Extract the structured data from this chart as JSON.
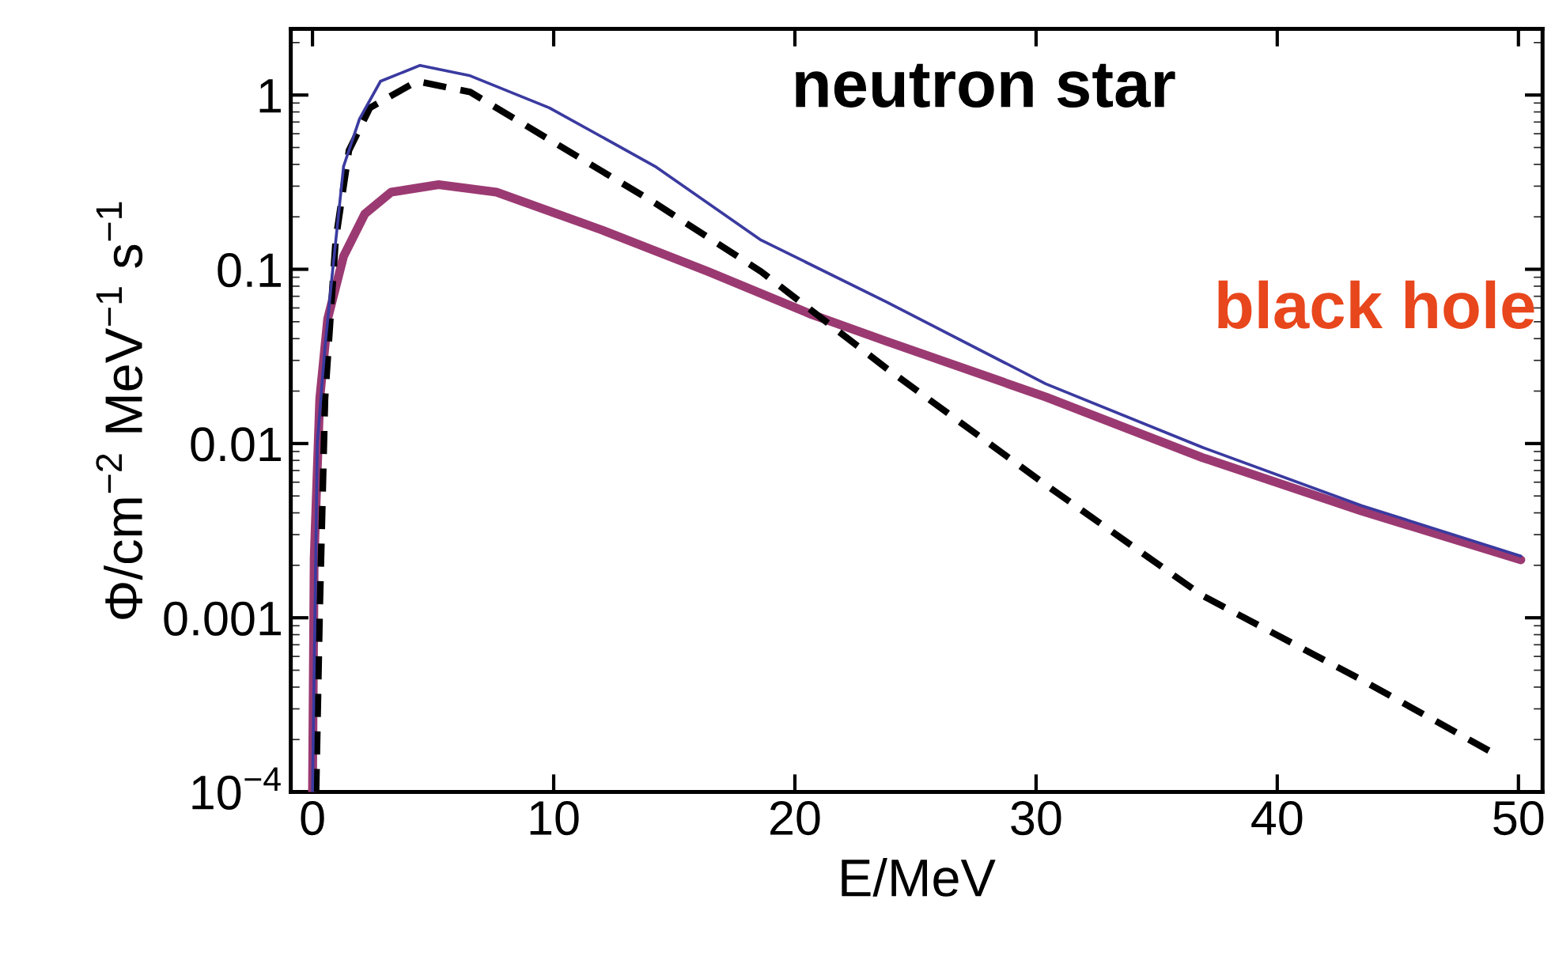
{
  "chart_data": {
    "type": "line",
    "xlabel": "E/MeV",
    "ylabel": "Φ/cm$^{−2}$ MeV$^{−1}$ s$^{−1}$",
    "log": "y",
    "grid": false,
    "legend": false,
    "xlim": [
      -0.9,
      51.0
    ],
    "xticks": [
      0,
      10,
      20,
      30,
      40,
      50
    ],
    "ylim": [
      0.0001,
      2.4
    ],
    "yticks": [
      {
        "value": 0.0001,
        "label": "10$^{−4}$"
      },
      0.001,
      0.01,
      0.1,
      1
    ],
    "annotations": [
      "neutron star",
      "black hole"
    ],
    "series": [
      {
        "color": "#3a3aa0",
        "line_style": "solid",
        "x": [
          0.0,
          0.2,
          0.52,
          0.85,
          1.29,
          1.95,
          2.82,
          4.46,
          6.54,
          9.82,
          14.2,
          18.6,
          23.8,
          30.4,
          36.9,
          43.5,
          50.1
        ],
        "values": [
          0.0001,
          0.0101,
          0.036,
          0.103,
          0.39,
          0.73,
          1.2,
          1.48,
          1.29,
          0.845,
          0.39,
          0.147,
          0.065,
          0.022,
          0.0095,
          0.0044,
          0.00226
        ]
      },
      {
        "color": "#9b3a72",
        "line_style": "solid",
        "x": [
          0.0,
          0.07,
          0.3,
          0.63,
          1.29,
          2.17,
          3.26,
          5.23,
          7.63,
          12.0,
          16.4,
          20.7,
          23.8,
          30.4,
          36.9,
          43.5,
          50.1
        ],
        "values": [
          0.0001,
          0.0022,
          0.018,
          0.052,
          0.119,
          0.208,
          0.277,
          0.306,
          0.277,
          0.168,
          0.097,
          0.055,
          0.0386,
          0.0185,
          0.0083,
          0.0041,
          0.00215
        ]
      },
      {
        "color": "#000000",
        "line_style": "dashed",
        "x": [
          0.15,
          0.3,
          0.52,
          0.96,
          1.51,
          2.38,
          4.33,
          6.54,
          9.82,
          14.2,
          18.6,
          23.8,
          30.4,
          36.9,
          43.5,
          49.1
        ],
        "values": [
          0.0001,
          0.0011,
          0.018,
          0.147,
          0.48,
          0.845,
          1.2,
          1.04,
          0.555,
          0.24,
          0.097,
          0.027,
          0.0058,
          0.00134,
          0.00044,
          0.000163
        ]
      }
    ]
  }
}
